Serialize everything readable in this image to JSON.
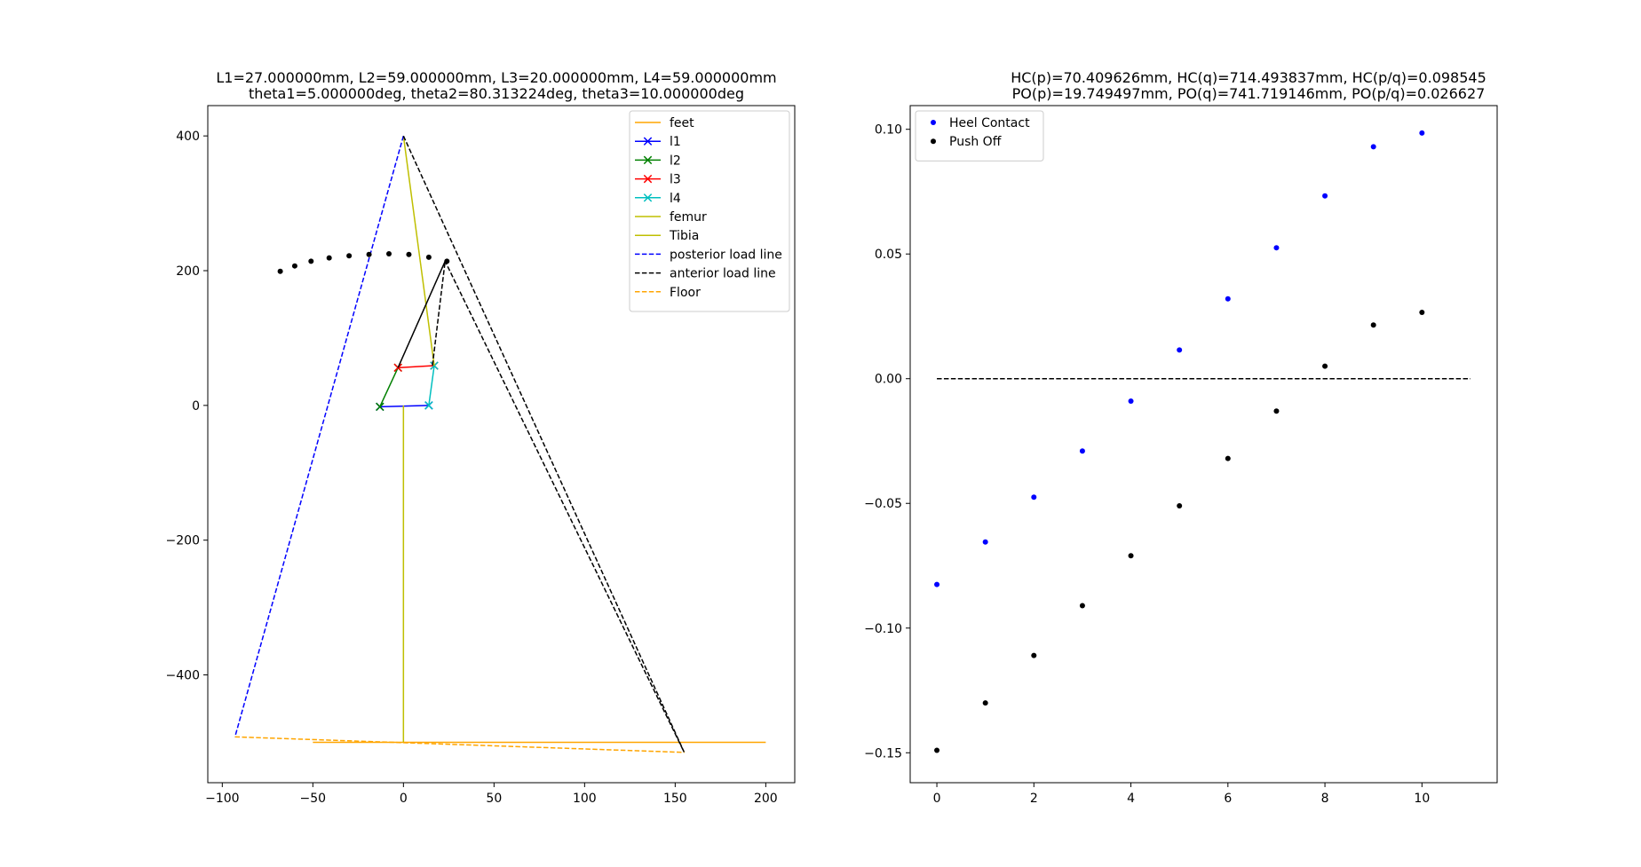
{
  "chart_data": [
    {
      "type": "line",
      "title_lines": [
        "L1=27.000000mm, L2=59.000000mm, L3=20.000000mm, L4=59.000000mm",
        "theta1=5.000000deg, theta2=80.313224deg, theta3=10.000000deg"
      ],
      "xlim": [
        -108,
        216
      ],
      "ylim": [
        -560,
        445
      ],
      "xticks": [
        -100,
        -50,
        0,
        50,
        100,
        150,
        200
      ],
      "xtick_labels": [
        "−100",
        "−50",
        "0",
        "50",
        "100",
        "150",
        "200"
      ],
      "yticks": [
        400,
        200,
        0,
        -200,
        -400
      ],
      "ytick_labels": [
        "400",
        "200",
        "0",
        "−200",
        "−400"
      ],
      "grid": false,
      "legend_position": "top-right",
      "series": [
        {
          "name": "feet",
          "color": "#FFA500",
          "dash": "solid",
          "marker": "none",
          "x": [
            -50,
            200
          ],
          "y": [
            -500,
            -500
          ]
        },
        {
          "name": "l1",
          "color": "#0000FF",
          "dash": "solid",
          "marker": "x",
          "x": [
            -13,
            14
          ],
          "y": [
            -2,
            0
          ]
        },
        {
          "name": "l2",
          "color": "#008000",
          "dash": "solid",
          "marker": "x",
          "x": [
            -13,
            -3
          ],
          "y": [
            -2,
            56
          ]
        },
        {
          "name": "l3",
          "color": "#FF0000",
          "dash": "solid",
          "marker": "x",
          "x": [
            -3,
            17
          ],
          "y": [
            56,
            59
          ]
        },
        {
          "name": "l4",
          "color": "#00BFBF",
          "dash": "solid",
          "marker": "x",
          "x": [
            14,
            17
          ],
          "y": [
            0,
            59
          ]
        },
        {
          "name": "femur",
          "color": "#BFBF00",
          "dash": "solid",
          "marker": "none",
          "x": [
            0,
            17
          ],
          "y": [
            400,
            59
          ]
        },
        {
          "name": "Tibia",
          "color": "#BFBF00",
          "dash": "solid",
          "marker": "none",
          "x": [
            0,
            0
          ],
          "y": [
            0,
            -500
          ]
        },
        {
          "name": "posterior load line",
          "color": "#0000FF",
          "dash": "dashed",
          "marker": "none",
          "x": [
            0,
            -93
          ],
          "y": [
            400,
            -492
          ]
        },
        {
          "name": "anterior load line",
          "color": "#000000",
          "dash": "dashed",
          "marker": "none",
          "x": [
            0,
            155,
            23,
            -3,
            23,
            16
          ],
          "y": [
            400,
            -515,
            214,
            56,
            214,
            59
          ]
        },
        {
          "name": "Floor",
          "color": "#FFA500",
          "dash": "dashed",
          "marker": "none",
          "x": [
            -93,
            155
          ],
          "y": [
            -492,
            -515
          ]
        }
      ],
      "unlabeled_points": {
        "color": "#000000",
        "x": [
          -68,
          -60,
          -51,
          -41,
          -30,
          -19,
          -8,
          3,
          14,
          24
        ],
        "y": [
          199,
          207,
          214,
          219,
          222,
          224,
          225,
          224,
          220,
          214
        ]
      }
    },
    {
      "type": "scatter",
      "title_lines": [
        "HC(p)=70.409626mm, HC(q)=714.493837mm, HC(p/q)=0.098545",
        "PO(p)=19.749497mm, PO(q)=741.719146mm, PO(p/q)=0.026627"
      ],
      "xlim": [
        -0.55,
        11.55
      ],
      "ylim": [
        -0.162,
        0.1095
      ],
      "xticks": [
        0,
        2,
        4,
        6,
        8,
        10
      ],
      "xtick_labels": [
        "0",
        "2",
        "4",
        "6",
        "8",
        "10"
      ],
      "yticks": [
        0.1,
        0.05,
        0.0,
        -0.05,
        -0.1,
        -0.15
      ],
      "ytick_labels": [
        "0.10",
        "0.05",
        "0.00",
        "−0.05",
        "−0.10",
        "−0.15"
      ],
      "grid": false,
      "legend_position": "top-left",
      "series": [
        {
          "name": "Heel Contact",
          "color": "#0000FF",
          "x": [
            0,
            1,
            2,
            3,
            4,
            5,
            6,
            7,
            8,
            9,
            10
          ],
          "y": [
            -0.0825,
            -0.0655,
            -0.0475,
            -0.029,
            -0.009,
            0.0115,
            0.032,
            0.0525,
            0.0733,
            0.093,
            0.0985
          ]
        },
        {
          "name": "Push Off",
          "color": "#000000",
          "x": [
            0,
            1,
            2,
            3,
            4,
            5,
            6,
            7,
            8,
            9,
            10
          ],
          "y": [
            -0.149,
            -0.13,
            -0.111,
            -0.091,
            -0.071,
            -0.051,
            -0.032,
            -0.013,
            0.005,
            0.0215,
            0.0266
          ]
        }
      ],
      "reference_line": {
        "color": "#000000",
        "dash": "dashed",
        "x": [
          0,
          11
        ],
        "y": [
          0,
          0
        ]
      }
    }
  ]
}
